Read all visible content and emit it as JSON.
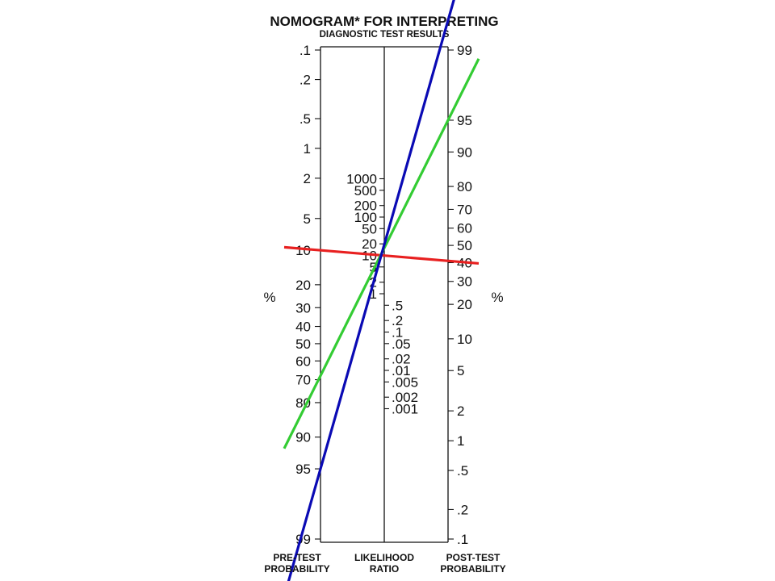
{
  "title": "NOMOGRAM* FOR INTERPRETING",
  "subtitle": "DIAGNOSTIC TEST RESULTS",
  "pretest_unit": "%",
  "posttest_unit": "%",
  "axes": {
    "pretest": {
      "label_line1": "PRE-TEST",
      "label_line2": "PROBABILITY",
      "ticks": [
        ".1",
        ".2",
        ".5",
        "1",
        "2",
        "5",
        "10",
        "20",
        "30",
        "40",
        "50",
        "60",
        "70",
        "80",
        "90",
        "95",
        "99"
      ]
    },
    "likelihood": {
      "label_line1": "LIKELIHOOD",
      "label_line2": "RATIO",
      "ticks": [
        "1000",
        "500",
        "200",
        "100",
        "50",
        "20",
        "10",
        "5",
        "2",
        "1",
        ".5",
        ".2",
        ".1",
        ".05",
        ".02",
        ".01",
        ".005",
        ".002",
        ".001"
      ]
    },
    "posttest": {
      "label_line1": "POST-TEST",
      "label_line2": "PROBABILITY",
      "ticks": [
        "99",
        "95",
        "90",
        "80",
        "70",
        "60",
        "50",
        "40",
        "30",
        "20",
        "10",
        "5",
        "2",
        "1",
        ".5",
        ".2",
        ".1"
      ]
    }
  },
  "lines": [
    {
      "color": "#e82020",
      "pretest": 10,
      "likelihood": 5.5,
      "posttest": 41
    },
    {
      "color": "#33cc33",
      "pretest": 68,
      "likelihood": 5.5,
      "posttest": 95
    },
    {
      "color": "#0a0ab4",
      "pretest": 95,
      "likelihood": 5.5,
      "posttest": 99.5
    }
  ]
}
